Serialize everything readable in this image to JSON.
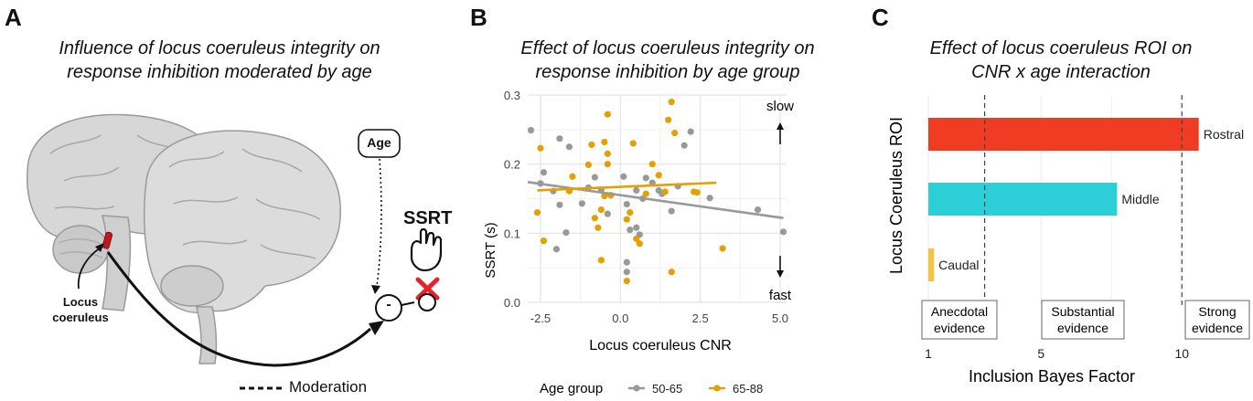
{
  "panelA": {
    "letter": "A",
    "title_line1": "Influence of locus coeruleus integrity on",
    "title_line2": "response inhibition moderated by age",
    "age_label": "Age",
    "ssrt_label": "SSRT",
    "lc_label_line1": "Locus",
    "lc_label_line2": "coeruleus",
    "minus_label": "-",
    "moderation_label": "Moderation"
  },
  "panelB": {
    "letter": "B",
    "title_line1": "Effect of locus coeruleus integrity on",
    "title_line2": "response inhibition by age group",
    "slow_label": "slow",
    "fast_label": "fast",
    "legend_title": "Age group"
  },
  "panelC": {
    "letter": "C",
    "title_line1": "Effect of locus coeruleus ROI on",
    "title_line2": "CNR x age interaction",
    "evidence": {
      "anecdotal_line1": "Anecdotal",
      "anecdotal_line2": "evidence",
      "substantial_line1": "Substantial",
      "substantial_line2": "evidence",
      "strong_line1": "Strong",
      "strong_line2": "evidence"
    }
  },
  "colors": {
    "grey_group": "#999999",
    "orange_group": "#E69F00",
    "rostral": "#F03C23",
    "middle": "#2CCFD6",
    "caudal": "#F5C242",
    "ssrt_cross": "#E8202A"
  },
  "chart_data": [
    {
      "type": "scatter",
      "xlabel": "Locus coeruleus CNR",
      "ylabel": "SSRT (s)",
      "xlim": [
        -2.9,
        5.2
      ],
      "ylim": [
        0,
        0.3
      ],
      "xticks": [
        "-2.5",
        "0.0",
        "2.5",
        "5.0"
      ],
      "yticks": [
        "0.0",
        "0.1",
        "0.2",
        "0.3"
      ],
      "grid": true,
      "legend_position": "bottom",
      "series": [
        {
          "name": "50-65",
          "points": [
            [
              -2.8,
              0.249
            ],
            [
              -2.4,
              0.188
            ],
            [
              -2.5,
              0.172
            ],
            [
              -1.9,
              0.237
            ],
            [
              -1.6,
              0.225
            ],
            [
              -2.1,
              0.161
            ],
            [
              -1.9,
              0.141
            ],
            [
              -1.7,
              0.101
            ],
            [
              -2.0,
              0.077
            ],
            [
              -1.2,
              0.143
            ],
            [
              -1.0,
              0.166
            ],
            [
              -0.8,
              0.181
            ],
            [
              -0.6,
              0.163
            ],
            [
              -0.3,
              0.155
            ],
            [
              -0.4,
              0.128
            ],
            [
              0.1,
              0.182
            ],
            [
              0.2,
              0.142
            ],
            [
              0.3,
              0.105
            ],
            [
              0.5,
              0.108
            ],
            [
              0.6,
              0.098
            ],
            [
              0.7,
              0.15
            ],
            [
              0.5,
              0.162
            ],
            [
              0.8,
              0.18
            ],
            [
              1.0,
              0.173
            ],
            [
              1.2,
              0.162
            ],
            [
              1.3,
              0.157
            ],
            [
              1.6,
              0.132
            ],
            [
              1.8,
              0.168
            ],
            [
              2.0,
              0.227
            ],
            [
              2.2,
              0.247
            ],
            [
              2.8,
              0.151
            ],
            [
              4.3,
              0.134
            ],
            [
              5.1,
              0.102
            ],
            [
              0.2,
              0.044
            ],
            [
              0.2,
              0.058
            ]
          ],
          "trend": [
            [
              -2.9,
              0.174
            ],
            [
              5.1,
              0.122
            ]
          ]
        },
        {
          "name": "65-88",
          "points": [
            [
              -2.6,
              0.13
            ],
            [
              -2.5,
              0.223
            ],
            [
              -2.4,
              0.089
            ],
            [
              -1.6,
              0.161
            ],
            [
              -1.5,
              0.182
            ],
            [
              -1.0,
              0.199
            ],
            [
              -0.9,
              0.228
            ],
            [
              -0.8,
              0.122
            ],
            [
              -0.7,
              0.108
            ],
            [
              -0.6,
              0.134
            ],
            [
              -0.5,
              0.154
            ],
            [
              -0.5,
              0.232
            ],
            [
              -0.4,
              0.215
            ],
            [
              -0.4,
              0.272
            ],
            [
              -0.4,
              0.2
            ],
            [
              -0.6,
              0.061
            ],
            [
              -0.3,
              0.155
            ],
            [
              0.2,
              0.12
            ],
            [
              0.3,
              0.13
            ],
            [
              0.4,
              0.23
            ],
            [
              0.5,
              0.092
            ],
            [
              0.6,
              0.085
            ],
            [
              0.8,
              0.157
            ],
            [
              1.0,
              0.2
            ],
            [
              1.2,
              0.184
            ],
            [
              1.4,
              0.16
            ],
            [
              1.5,
              0.264
            ],
            [
              1.6,
              0.29
            ],
            [
              1.7,
              0.245
            ],
            [
              2.3,
              0.16
            ],
            [
              2.4,
              0.159
            ],
            [
              3.2,
              0.078
            ],
            [
              1.6,
              0.044
            ],
            [
              0.2,
              0.031
            ]
          ],
          "trend": [
            [
              -2.6,
              0.162
            ],
            [
              3.0,
              0.173
            ]
          ]
        }
      ]
    },
    {
      "type": "bar",
      "orientation": "horizontal",
      "xlabel": "Inclusion Bayes Factor",
      "ylabel": "Locus Coeruleus ROI",
      "xlim": [
        1,
        12.2
      ],
      "xticks": [
        1,
        5,
        10
      ],
      "thresholds": [
        3,
        10
      ],
      "categories": [
        "Rostral",
        "Middle",
        "Caudal"
      ],
      "values": [
        10.6,
        7.7,
        1.2
      ],
      "grid": true
    }
  ]
}
